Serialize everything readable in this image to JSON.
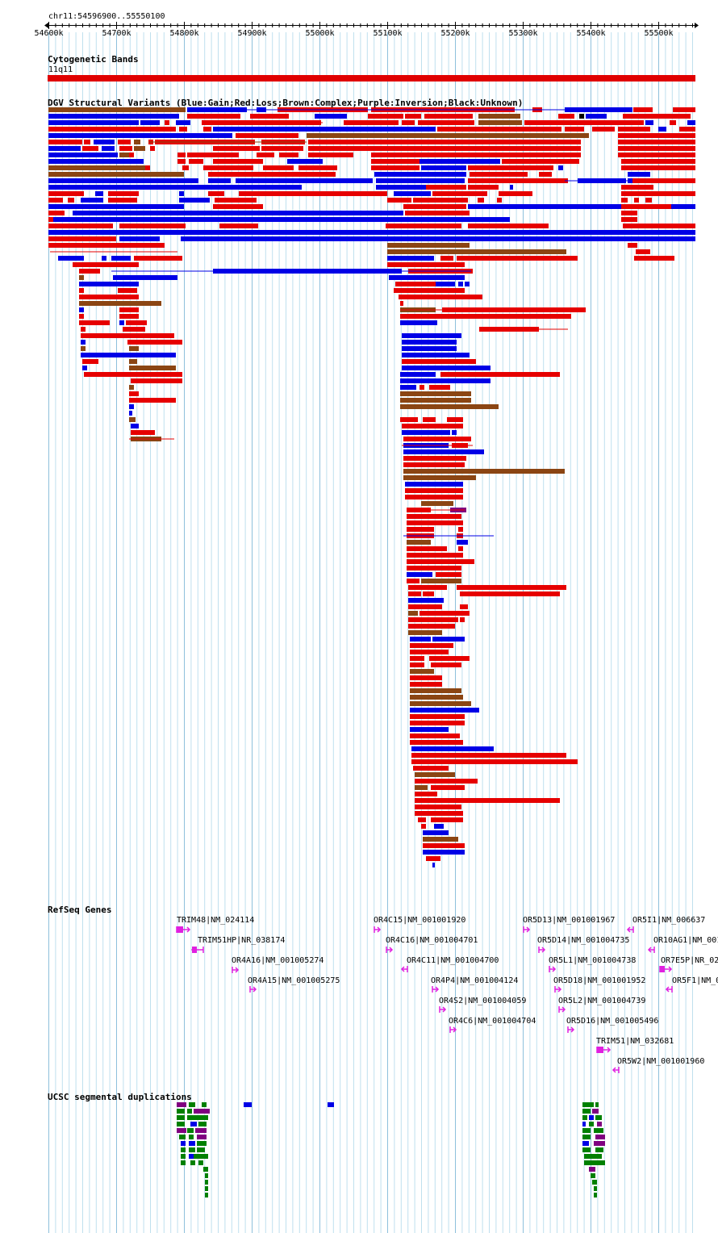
{
  "ruler": {
    "title": "chr11:54596900..55550100",
    "ticks": [
      "54600k",
      "54700k",
      "54800k",
      "54900k",
      "55000k",
      "55100k",
      "55200k",
      "55300k",
      "55400k",
      "55500k"
    ]
  },
  "tracks": {
    "cytoband": {
      "title": "Cytogenetic Bands",
      "band_label": "11q11",
      "band_color": "#e00000"
    },
    "dgv": {
      "title": "DGV Structural Variants (Blue:Gain;Red:Loss;Brown:Complex;Purple:Inversion;Black:Unknown)",
      "colors": {
        "gain": "#0000e6",
        "loss": "#e60000",
        "complex": "#8b4513",
        "inversion": "#800080",
        "unknown": "#000000"
      }
    },
    "refseq": {
      "title": "RefSeq Genes",
      "gene_color": "#e020e0",
      "genes": [
        "TRIM48|NM_024114",
        "TRIM51HP|NR_038174",
        "OR4A16|NM_001005274",
        "OR4A15|NM_001005275",
        "OR4C15|NM_001001920",
        "OR4C16|NM_001004701",
        "OR4C11|NM_001004700",
        "OR4P4|NM_001004124",
        "OR4S2|NM_001004059",
        "OR4C6|NM_001004704",
        "OR5D13|NM_001001967",
        "OR5D14|NM_001004735",
        "OR5L1|NM_001004738",
        "OR5D18|NM_001001952",
        "OR5L2|NM_001004739",
        "OR5D16|NM_001005496",
        "TRIM51|NM_032681",
        "OR5W2|NM_001001960",
        "OR5I1|NM_006637",
        "OR10AG1|NM_001",
        "OR7E5P|NR_02",
        "OR5F1|NM_0"
      ]
    },
    "segdups": {
      "title": "UCSC segmental duplications",
      "colors": [
        "#008000",
        "#0000e6",
        "#800080"
      ]
    }
  }
}
